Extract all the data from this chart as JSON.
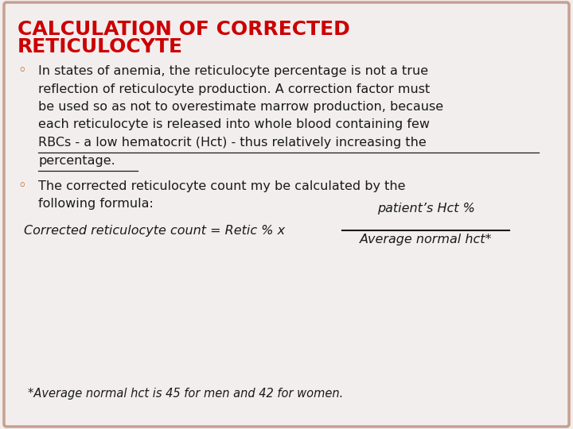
{
  "title_line1": "CALCULATION OF CORRECTED",
  "title_line2": "RETICULOCYTE",
  "title_color": "#CC0000",
  "title_fontsize": 18,
  "background_color": "#f2eeee",
  "border_color": "#c8a090",
  "bullet_color": "#b85000",
  "bullet1_lines": [
    [
      "In states of anemia, the reticulocyte percentage is not a true",
      false
    ],
    [
      "reflection of reticulocyte production. A correction factor must",
      false
    ],
    [
      "be used so as not to overestimate marrow production, because",
      false
    ],
    [
      "each reticulocyte is released into whole blood containing few",
      false
    ],
    [
      "RBCs - a low hematocrit (Hct) - thus relatively increasing the",
      true
    ],
    [
      "percentage.",
      true
    ]
  ],
  "bullet2_lines": [
    "The corrected reticulocyte count my be calculated by the",
    "following formula:"
  ],
  "formula_left": "Corrected reticulocyte count = Retic % x",
  "formula_numerator": "patient’s Hct %",
  "formula_denominator": "Average normal hct*",
  "footnote": "*Average normal hct is 45 for men and 42 for women.",
  "text_color": "#1a1a1a",
  "body_fontsize": 11.5,
  "formula_fontsize": 11.5,
  "footnote_fontsize": 10.5
}
